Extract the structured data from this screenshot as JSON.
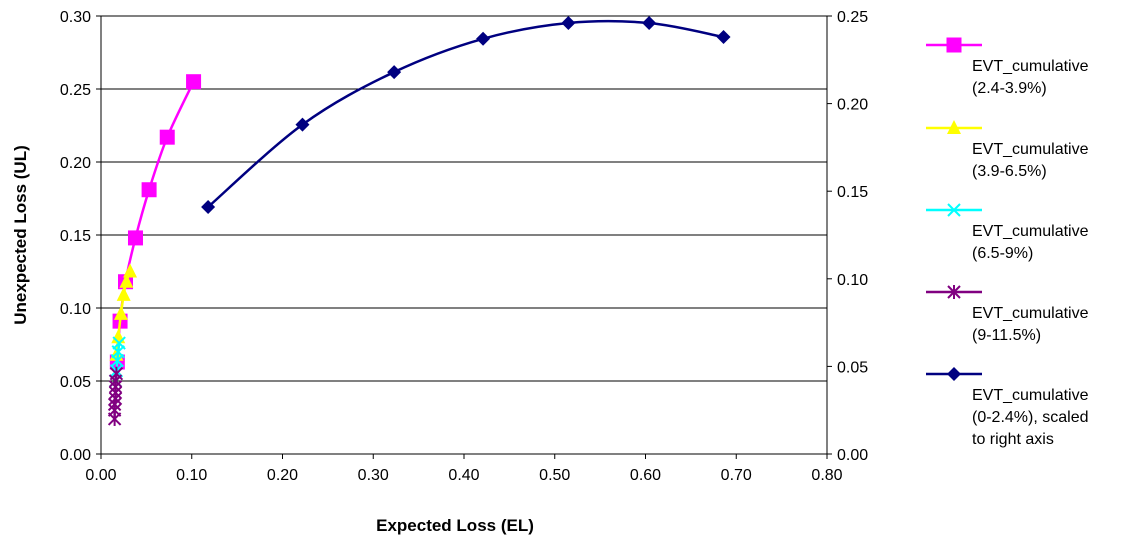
{
  "chart_data": {
    "type": "scatter",
    "title": "",
    "xlabel": "Expected Loss (EL)",
    "ylabel": "Unexpected Loss (UL)",
    "y2label": "",
    "xlim": [
      0,
      0.8
    ],
    "ylim": [
      0,
      0.3
    ],
    "y2lim": [
      0,
      0.25
    ],
    "x_ticks": [
      "0.00",
      "0.10",
      "0.20",
      "0.30",
      "0.40",
      "0.50",
      "0.60",
      "0.70",
      "0.80"
    ],
    "y_ticks": [
      "0.00",
      "0.05",
      "0.10",
      "0.15",
      "0.20",
      "0.25",
      "0.30"
    ],
    "y2_ticks": [
      "0.00",
      "0.05",
      "0.10",
      "0.15",
      "0.20",
      "0.25"
    ],
    "grid": "horizontal",
    "legend_position": "right",
    "series": [
      {
        "name": "EVT_cumulative (2.4-3.9%)",
        "legend_lines": [
          "EVT_cumulative",
          "(2.4-3.9%)"
        ],
        "color": "#ff00ff",
        "marker": "square",
        "axis": "left",
        "x": [
          0.018,
          0.021,
          0.027,
          0.038,
          0.053,
          0.073,
          0.102
        ],
        "y": [
          0.063,
          0.091,
          0.118,
          0.148,
          0.181,
          0.217,
          0.255
        ]
      },
      {
        "name": "EVT_cumulative (3.9-6.5%)",
        "legend_lines": [
          "EVT_cumulative",
          "(3.9-6.5%)"
        ],
        "color": "#ffff00",
        "marker": "triangle",
        "axis": "left",
        "x": [
          0.017,
          0.019,
          0.022,
          0.025,
          0.028,
          0.032
        ],
        "y": [
          0.068,
          0.08,
          0.096,
          0.109,
          0.118,
          0.125
        ]
      },
      {
        "name": "EVT_cumulative (6.5-9%)",
        "legend_lines": [
          "EVT_cumulative",
          "(6.5-9%)"
        ],
        "color": "#00ffff",
        "marker": "x",
        "axis": "left",
        "x": [
          0.016,
          0.017,
          0.018,
          0.019,
          0.02
        ],
        "y": [
          0.05,
          0.057,
          0.064,
          0.07,
          0.076
        ]
      },
      {
        "name": "EVT_cumulative (9-11.5%)",
        "legend_lines": [
          "EVT_cumulative",
          "(9-11.5%)"
        ],
        "color": "#800080",
        "marker": "asterisk",
        "axis": "left",
        "x": [
          0.015,
          0.015,
          0.015,
          0.016,
          0.016,
          0.016,
          0.016,
          0.017
        ],
        "y": [
          0.024,
          0.03,
          0.034,
          0.038,
          0.042,
          0.046,
          0.05,
          0.055
        ]
      },
      {
        "name": "EVT_cumulative (0-2.4%), scaled to right axis",
        "legend_lines": [
          "EVT_cumulative",
          "(0-2.4%), scaled",
          "to right axis"
        ],
        "color": "#000080",
        "marker": "diamond",
        "axis": "right",
        "x": [
          0.118,
          0.222,
          0.323,
          0.421,
          0.515,
          0.604,
          0.686
        ],
        "y": [
          0.141,
          0.188,
          0.218,
          0.237,
          0.246,
          0.246,
          0.238
        ]
      }
    ]
  }
}
